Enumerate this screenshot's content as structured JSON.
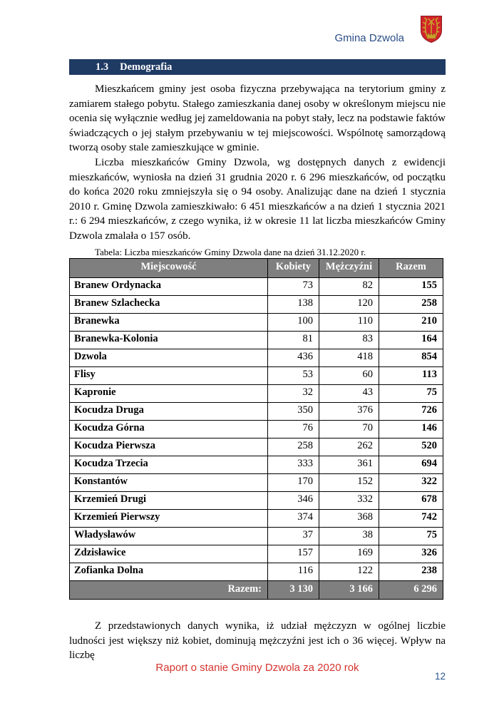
{
  "header": {
    "municipality": "Gmina Dzwola",
    "logo_icon": "coat-of-arms"
  },
  "section": {
    "number": "1.3",
    "title": "Demografia"
  },
  "body": {
    "p1": "Mieszkańcem gminy jest osoba fizyczna przebywająca na terytorium gminy z zamiarem stałego pobytu. Stałego zamieszkania danej osoby w określonym miejscu nie ocenia się wyłącznie według jej zameldowania na pobyt stały, lecz na podstawie faktów świadczących o jej stałym przebywaniu w tej miejscowości. Wspólnotę samorządową tworzą osoby stale zamieszkujące w gminie.",
    "p2": "Liczba mieszkańców Gminy Dzwola, wg dostępnych danych z ewidencji mieszkańców, wyniosła na dzień 31 grudnia 2020 r. 6 296 mieszkańców, od początku do końca 2020 roku zmniejszyła się o 94 osoby. Analizując dane na dzień 1 stycznia 2010 r. Gminę Dzwola zamieszkiwało: 6 451 mieszkańców a na dzień 1 stycznia 2021 r.: 6 294 mieszkańców, z czego wynika, iż w okresie 11 lat liczba mieszkańców Gminy Dzwola zmalała o 157 osób.",
    "p3": "Z przedstawionych danych wynika, iż udział mężczyzn w ogólnej liczbie ludności jest większy niż kobiet, dominują mężczyźni jest ich o 36 więcej. Wpływ na liczbę"
  },
  "table": {
    "caption": "Tabela: Liczba mieszkańców Gminy Dzwola dane na dzień 31.12.2020 r.",
    "columns": [
      "Miejscowość",
      "Kobiety",
      "Mężczyźni",
      "Razem"
    ],
    "rows": [
      [
        "Branew Ordynacka",
        "73",
        "82",
        "155"
      ],
      [
        "Branew Szlachecka",
        "138",
        "120",
        "258"
      ],
      [
        "Branewka",
        "100",
        "110",
        "210"
      ],
      [
        "Branewka-Kolonia",
        "81",
        "83",
        "164"
      ],
      [
        "Dzwola",
        "436",
        "418",
        "854"
      ],
      [
        "Flisy",
        "53",
        "60",
        "113"
      ],
      [
        "Kapronie",
        "32",
        "43",
        "75"
      ],
      [
        "Kocudza Druga",
        "350",
        "376",
        "726"
      ],
      [
        "Kocudza Górna",
        "76",
        "70",
        "146"
      ],
      [
        "Kocudza Pierwsza",
        "258",
        "262",
        "520"
      ],
      [
        "Kocudza Trzecia",
        "333",
        "361",
        "694"
      ],
      [
        "Konstantów",
        "170",
        "152",
        "322"
      ],
      [
        "Krzemień Drugi",
        "346",
        "332",
        "678"
      ],
      [
        "Krzemień Pierwszy",
        "374",
        "368",
        "742"
      ],
      [
        "Władysławów",
        "37",
        "38",
        "75"
      ],
      [
        "Zdzisławice",
        "157",
        "169",
        "326"
      ],
      [
        "Zofianka Dolna",
        "116",
        "122",
        "238"
      ]
    ],
    "total_row": [
      "Razem:",
      "3 130",
      "3 166",
      "6 296"
    ]
  },
  "footer": {
    "report_title": "Raport o stanie Gminy Dzwola za 2020 rok",
    "page_number": "12"
  },
  "colors": {
    "navy_bar": "#1f3a63",
    "brand_blue": "#2b4d86",
    "table_header_gray": "#7f7f7f",
    "footer_red": "#d5342f",
    "crest_red": "#d2232a",
    "crest_gold": "#c9a22b"
  }
}
